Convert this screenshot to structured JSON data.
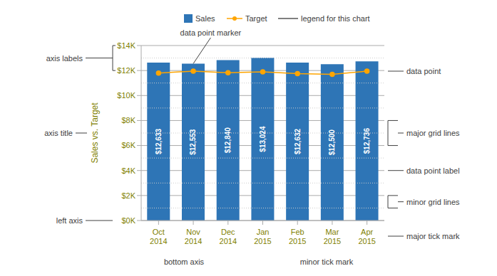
{
  "chart_data": {
    "type": "bar",
    "categories": [
      "Oct\n2014",
      "Nov\n2014",
      "Dec\n2014",
      "Jan\n2015",
      "Feb\n2015",
      "Mar\n2015",
      "Apr\n2015"
    ],
    "series": [
      {
        "name": "Sales",
        "type": "bar",
        "color": "#2E75B6",
        "values": [
          12633,
          12553,
          12840,
          13024,
          12632,
          12500,
          12736
        ],
        "value_labels": [
          "$12,633",
          "$12,553",
          "$12,840",
          "$13,024",
          "$12,632",
          "$12,500",
          "$12,736"
        ]
      },
      {
        "name": "Target",
        "type": "line",
        "color": "#FFA500",
        "marker": "circle",
        "values": [
          11800,
          11950,
          11820,
          11900,
          11750,
          11700,
          11950
        ]
      }
    ],
    "ylabel": "Sales vs. Target",
    "ylim": [
      0,
      14000
    ],
    "yticks": [
      {
        "value": 0,
        "label": "$0K"
      },
      {
        "value": 2000,
        "label": "$2K"
      },
      {
        "value": 4000,
        "label": "$4K"
      },
      {
        "value": 6000,
        "label": "$6K"
      },
      {
        "value": 8000,
        "label": "$8K"
      },
      {
        "value": 10000,
        "label": "$10K"
      },
      {
        "value": 12000,
        "label": "$12K"
      },
      {
        "value": 14000,
        "label": "$14K"
      }
    ],
    "grid": true,
    "legend": "top",
    "data_labels": true,
    "annotations": [
      "legend for this chart",
      "data point marker",
      "axis labels",
      "axis title",
      "left axis",
      "bottom axis",
      "minor tick mark",
      "major tick mark",
      "major grid lines",
      "minor grid lines",
      "data point label",
      "data point"
    ]
  }
}
